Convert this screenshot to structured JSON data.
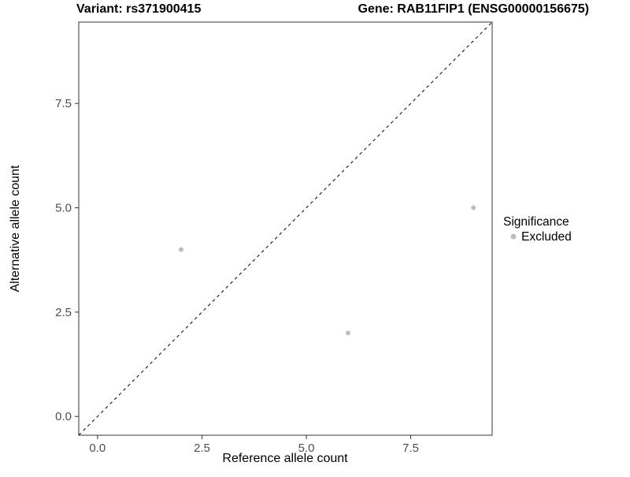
{
  "chart_data": {
    "type": "scatter",
    "title_left": "Variant: rs371900415",
    "title_right": "Gene: RAB11FIP1 (ENSG00000156675)",
    "xlabel": "Reference allele count",
    "ylabel": "Alternative allele count",
    "xlim": [
      -0.45,
      9.45
    ],
    "ylim": [
      -0.45,
      9.45
    ],
    "x_ticks": [
      0.0,
      2.5,
      5.0,
      7.5
    ],
    "y_ticks": [
      0.0,
      2.5,
      5.0,
      7.5
    ],
    "points": [
      {
        "x": 2,
        "y": 4
      },
      {
        "x": 6,
        "y": 2
      },
      {
        "x": 9,
        "y": 5
      }
    ],
    "point_color": "#bebebe",
    "point_radius": 3,
    "reference_line": {
      "type": "identity (y = x)",
      "style": "dashed",
      "color": "#000000"
    },
    "legend": {
      "position": "right",
      "title": "Significance",
      "entries": [
        {
          "label": "Excluded",
          "color": "#bebebe"
        }
      ]
    },
    "grid": false,
    "panel_border_color": "#333333",
    "panel_background": "#ffffff"
  }
}
